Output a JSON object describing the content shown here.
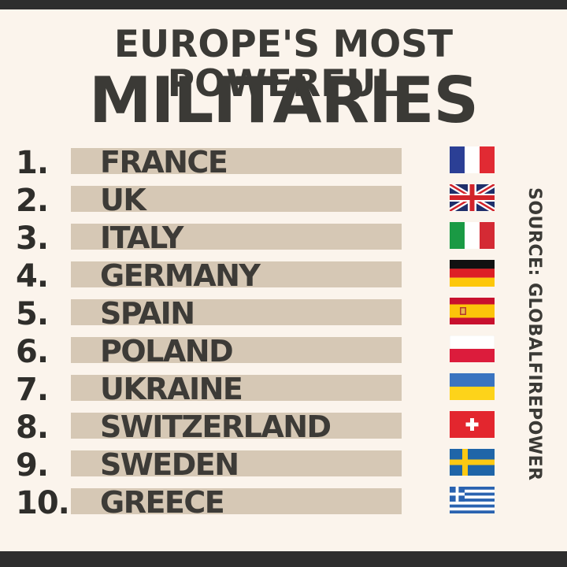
{
  "title": {
    "line1": "EUROPE'S MOST POWERFUL",
    "line2": "MILITARIES"
  },
  "source": "SOURCE: GLOBALFIREPOWER",
  "ranking": [
    {
      "rank": "1.",
      "country": "FRANCE",
      "flag": "france-flag-icon"
    },
    {
      "rank": "2.",
      "country": "UK",
      "flag": "uk-flag-icon"
    },
    {
      "rank": "3.",
      "country": "ITALY",
      "flag": "italy-flag-icon"
    },
    {
      "rank": "4.",
      "country": "GERMANY",
      "flag": "germany-flag-icon"
    },
    {
      "rank": "5.",
      "country": "SPAIN",
      "flag": "spain-flag-icon"
    },
    {
      "rank": "6.",
      "country": "POLAND",
      "flag": "poland-flag-icon"
    },
    {
      "rank": "7.",
      "country": "UKRAINE",
      "flag": "ukraine-flag-icon"
    },
    {
      "rank": "8.",
      "country": "SWITZERLAND",
      "flag": "switzerland-flag-icon"
    },
    {
      "rank": "9.",
      "country": "SWEDEN",
      "flag": "sweden-flag-icon"
    },
    {
      "rank": "10.",
      "country": "GREECE",
      "flag": "greece-flag-icon"
    }
  ],
  "colors": {
    "background": "#fbf4ec",
    "bar": "#d6c8b5",
    "text": "#3b3a36",
    "frame": "#2e2e2e"
  }
}
